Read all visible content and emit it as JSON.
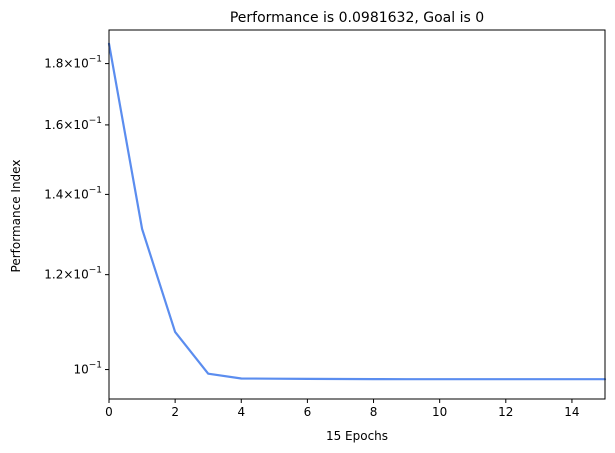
{
  "chart_data": {
    "type": "line",
    "title": "Performance is 0.0981632, Goal is 0",
    "xlabel": "15 Epochs",
    "ylabel": "Performance Index",
    "xlim": [
      0,
      15
    ],
    "ylim": [
      0.0945,
      0.192
    ],
    "yscale": "log",
    "grid": false,
    "line_color": "#5b8def",
    "x_ticks": [
      0,
      2,
      4,
      6,
      8,
      10,
      12,
      14
    ],
    "x_tick_labels": [
      "0",
      "2",
      "4",
      "6",
      "8",
      "10",
      "12",
      "14"
    ],
    "y_ticks": [
      0.1,
      0.12,
      0.14,
      0.16,
      0.18
    ],
    "y_tick_labels": [
      {
        "mantissa": "",
        "exponent": "−1"
      },
      {
        "mantissa": "1.2",
        "exponent": "−1"
      },
      {
        "mantissa": "1.4",
        "exponent": "−1"
      },
      {
        "mantissa": "1.6",
        "exponent": "−1"
      },
      {
        "mantissa": "1.8",
        "exponent": "−1"
      }
    ],
    "series": [
      {
        "x": [
          0,
          1,
          2,
          3,
          4,
          5,
          6,
          7,
          8,
          9,
          10,
          11,
          12,
          13,
          14,
          15
        ],
        "y": [
          0.187,
          0.131,
          0.1075,
          0.0992,
          0.0983,
          0.09825,
          0.09822,
          0.0982,
          0.09818,
          0.09817,
          0.09817,
          0.09816,
          0.09816,
          0.09816,
          0.09816,
          0.09816
        ]
      }
    ]
  }
}
